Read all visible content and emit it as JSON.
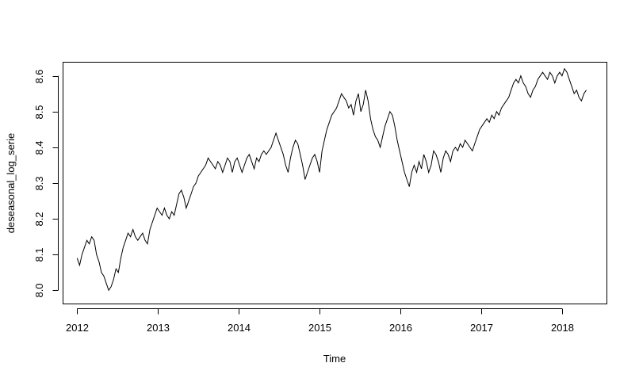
{
  "chart_data": {
    "type": "line",
    "xlabel": "Time",
    "ylabel": "deseasonal_log_serie",
    "xlim": [
      2011.83,
      2018.55
    ],
    "ylim": [
      7.963,
      8.637
    ],
    "x_ticks": [
      2012,
      2013,
      2014,
      2015,
      2016,
      2017,
      2018
    ],
    "x_tick_labels": [
      "2012",
      "2013",
      "2014",
      "2015",
      "2016",
      "2017",
      "2018"
    ],
    "y_ticks": [
      8.0,
      8.1,
      8.2,
      8.3,
      8.4,
      8.5,
      8.6
    ],
    "y_tick_labels": [
      "8.0",
      "8.1",
      "8.2",
      "8.3",
      "8.4",
      "8.5",
      "8.6"
    ],
    "grid": false,
    "legend": "none",
    "line_color": "#000000",
    "series": [
      {
        "x": [
          2012.0,
          2012.03,
          2012.06,
          2012.09,
          2012.12,
          2012.15,
          2012.18,
          2012.21,
          2012.24,
          2012.27,
          2012.3,
          2012.33,
          2012.36,
          2012.39,
          2012.42,
          2012.45,
          2012.48,
          2012.51,
          2012.54,
          2012.57,
          2012.6,
          2012.63,
          2012.66,
          2012.69,
          2012.72,
          2012.75,
          2012.78,
          2012.81,
          2012.84,
          2012.87,
          2012.9,
          2012.93,
          2012.96,
          2012.99,
          2013.02,
          2013.05,
          2013.08,
          2013.11,
          2013.14,
          2013.17,
          2013.2,
          2013.23,
          2013.26,
          2013.29,
          2013.32,
          2013.35,
          2013.38,
          2013.41,
          2013.44,
          2013.47,
          2013.5,
          2013.53,
          2013.56,
          2013.59,
          2013.62,
          2013.65,
          2013.68,
          2013.71,
          2013.74,
          2013.77,
          2013.8,
          2013.83,
          2013.86,
          2013.89,
          2013.92,
          2013.95,
          2013.98,
          2014.01,
          2014.04,
          2014.07,
          2014.1,
          2014.13,
          2014.16,
          2014.19,
          2014.22,
          2014.25,
          2014.28,
          2014.31,
          2014.34,
          2014.37,
          2014.4,
          2014.43,
          2014.46,
          2014.49,
          2014.52,
          2014.55,
          2014.58,
          2014.61,
          2014.64,
          2014.67,
          2014.7,
          2014.73,
          2014.76,
          2014.79,
          2014.82,
          2014.85,
          2014.88,
          2014.91,
          2014.94,
          2014.97,
          2015.0,
          2015.03,
          2015.06,
          2015.09,
          2015.12,
          2015.15,
          2015.18,
          2015.21,
          2015.24,
          2015.27,
          2015.3,
          2015.33,
          2015.36,
          2015.39,
          2015.42,
          2015.45,
          2015.48,
          2015.51,
          2015.54,
          2015.57,
          2015.6,
          2015.63,
          2015.66,
          2015.69,
          2015.72,
          2015.75,
          2015.78,
          2015.81,
          2015.84,
          2015.87,
          2015.9,
          2015.93,
          2015.96,
          2015.99,
          2016.02,
          2016.05,
          2016.08,
          2016.11,
          2016.14,
          2016.17,
          2016.2,
          2016.23,
          2016.26,
          2016.29,
          2016.32,
          2016.35,
          2016.38,
          2016.41,
          2016.44,
          2016.47,
          2016.5,
          2016.53,
          2016.56,
          2016.59,
          2016.62,
          2016.65,
          2016.68,
          2016.71,
          2016.74,
          2016.77,
          2016.8,
          2016.83,
          2016.86,
          2016.89,
          2016.92,
          2016.95,
          2016.98,
          2017.01,
          2017.04,
          2017.07,
          2017.1,
          2017.13,
          2017.16,
          2017.19,
          2017.22,
          2017.25,
          2017.28,
          2017.31,
          2017.34,
          2017.37,
          2017.4,
          2017.43,
          2017.46,
          2017.49,
          2017.52,
          2017.55,
          2017.58,
          2017.61,
          2017.64,
          2017.67,
          2017.7,
          2017.73,
          2017.76,
          2017.79,
          2017.82,
          2017.85,
          2017.88,
          2017.91,
          2017.94,
          2017.97,
          2018.0,
          2018.03,
          2018.06,
          2018.09,
          2018.12,
          2018.15,
          2018.18,
          2018.21,
          2018.24,
          2018.27,
          2018.3
        ],
        "values": [
          8.09,
          8.07,
          8.1,
          8.12,
          8.14,
          8.13,
          8.15,
          8.14,
          8.1,
          8.08,
          8.05,
          8.04,
          8.02,
          8.0,
          8.01,
          8.03,
          8.06,
          8.05,
          8.09,
          8.12,
          8.14,
          8.16,
          8.15,
          8.17,
          8.15,
          8.14,
          8.15,
          8.16,
          8.14,
          8.13,
          8.17,
          8.19,
          8.21,
          8.23,
          8.22,
          8.21,
          8.23,
          8.21,
          8.2,
          8.22,
          8.21,
          8.24,
          8.27,
          8.28,
          8.26,
          8.23,
          8.25,
          8.27,
          8.29,
          8.3,
          8.32,
          8.33,
          8.34,
          8.35,
          8.37,
          8.36,
          8.35,
          8.34,
          8.36,
          8.35,
          8.33,
          8.35,
          8.37,
          8.36,
          8.33,
          8.36,
          8.37,
          8.35,
          8.33,
          8.35,
          8.37,
          8.38,
          8.36,
          8.34,
          8.37,
          8.36,
          8.38,
          8.39,
          8.38,
          8.39,
          8.4,
          8.42,
          8.44,
          8.42,
          8.4,
          8.38,
          8.35,
          8.33,
          8.37,
          8.4,
          8.42,
          8.41,
          8.38,
          8.35,
          8.31,
          8.33,
          8.35,
          8.37,
          8.38,
          8.36,
          8.33,
          8.39,
          8.42,
          8.45,
          8.47,
          8.49,
          8.5,
          8.51,
          8.53,
          8.55,
          8.54,
          8.53,
          8.51,
          8.52,
          8.49,
          8.53,
          8.55,
          8.5,
          8.52,
          8.56,
          8.53,
          8.48,
          8.45,
          8.43,
          8.42,
          8.4,
          8.43,
          8.46,
          8.48,
          8.5,
          8.49,
          8.46,
          8.42,
          8.39,
          8.36,
          8.33,
          8.31,
          8.29,
          8.33,
          8.35,
          8.33,
          8.36,
          8.34,
          8.38,
          8.36,
          8.33,
          8.35,
          8.39,
          8.38,
          8.36,
          8.33,
          8.37,
          8.39,
          8.38,
          8.36,
          8.39,
          8.4,
          8.39,
          8.41,
          8.4,
          8.42,
          8.41,
          8.4,
          8.39,
          8.41,
          8.43,
          8.45,
          8.46,
          8.47,
          8.48,
          8.47,
          8.49,
          8.48,
          8.5,
          8.49,
          8.51,
          8.52,
          8.53,
          8.54,
          8.56,
          8.58,
          8.59,
          8.58,
          8.6,
          8.58,
          8.57,
          8.55,
          8.54,
          8.56,
          8.57,
          8.59,
          8.6,
          8.61,
          8.6,
          8.59,
          8.61,
          8.6,
          8.58,
          8.6,
          8.61,
          8.6,
          8.62,
          8.61,
          8.59,
          8.57,
          8.55,
          8.56,
          8.54,
          8.53,
          8.55,
          8.56
        ]
      }
    ]
  }
}
